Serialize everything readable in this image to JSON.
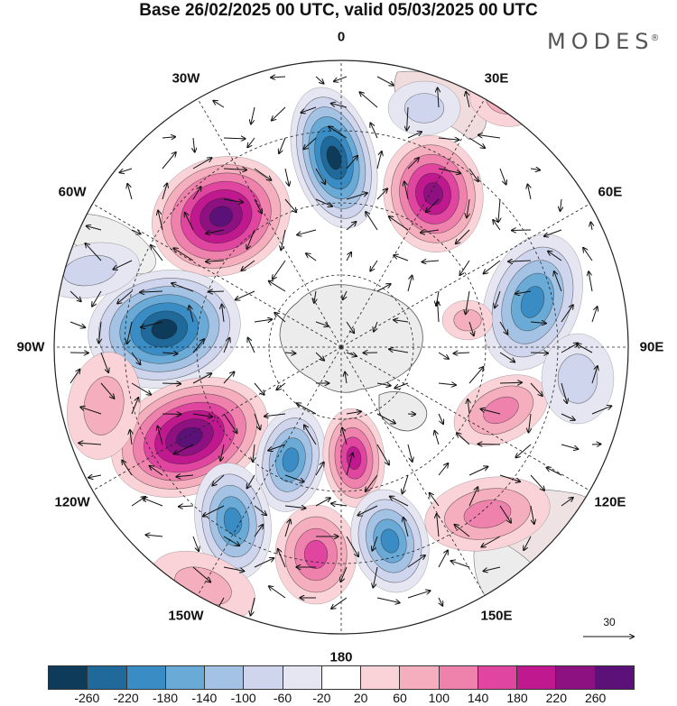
{
  "header": {
    "title": "Base 26/02/2025 00 UTC, valid 05/03/2025 00 UTC"
  },
  "brand": {
    "logo_text": "MODES",
    "mark": "®"
  },
  "map": {
    "projection": "south polar stereographic",
    "longitude_labels": [
      {
        "name": "lon-0",
        "text": "0",
        "lon": 0
      },
      {
        "name": "lon-30e",
        "text": "30E",
        "lon": 30
      },
      {
        "name": "lon-60e",
        "text": "60E",
        "lon": 60
      },
      {
        "name": "lon-90e",
        "text": "90E",
        "lon": 90
      },
      {
        "name": "lon-120e",
        "text": "120E",
        "lon": 120
      },
      {
        "name": "lon-150e",
        "text": "150E",
        "lon": 150
      },
      {
        "name": "lon-180",
        "text": "180",
        "lon": 180
      },
      {
        "name": "lon-150w",
        "text": "150W",
        "lon": -150
      },
      {
        "name": "lon-120w",
        "text": "120W",
        "lon": -120
      },
      {
        "name": "lon-90w",
        "text": "90W",
        "lon": -90
      },
      {
        "name": "lon-60w",
        "text": "60W",
        "lon": -60
      },
      {
        "name": "lon-30w",
        "text": "30W",
        "lon": -30
      }
    ],
    "reference_vector": {
      "label": "30"
    }
  },
  "colorbar": {
    "colors": [
      "#0f3b5a",
      "#1f6a9a",
      "#3a8cc4",
      "#6aaad6",
      "#a4c3e4",
      "#cfd5ec",
      "#e6e6f2",
      "#ffffff",
      "#f9d3d8",
      "#f5aebd",
      "#ee82ad",
      "#e0459f",
      "#c0198f",
      "#8d1180",
      "#5b1177"
    ],
    "tick_labels": [
      "-260",
      "-220",
      "-180",
      "-140",
      "-100",
      "-60",
      "-20",
      "20",
      "60",
      "100",
      "140",
      "180",
      "220",
      "260"
    ]
  }
}
